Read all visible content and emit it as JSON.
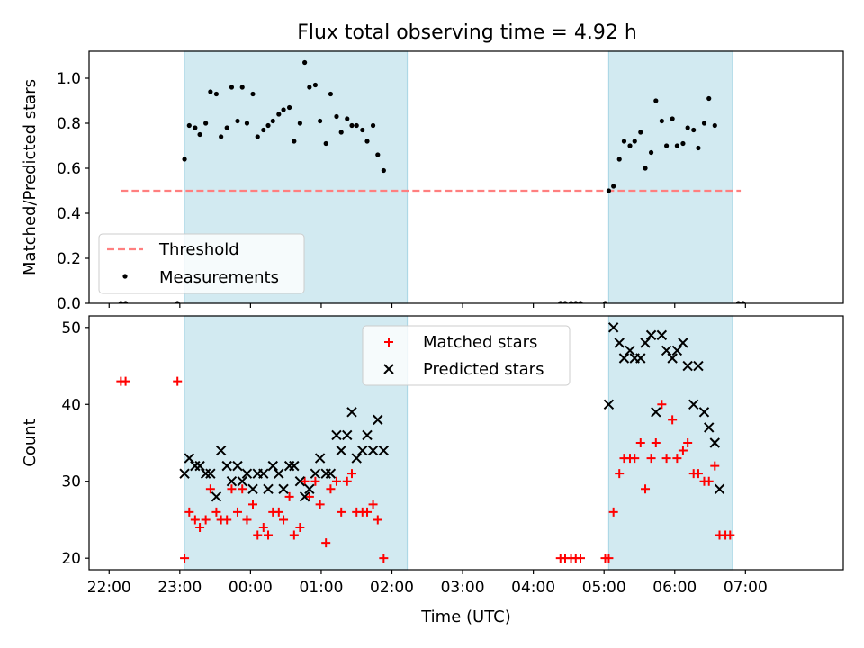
{
  "title": "Flux total observing time = 4.92 h",
  "colors": {
    "shade": "#add8e6",
    "threshold": "#ff7f7f",
    "measurement": "#000000",
    "matched": "#ff0000",
    "predicted": "#000000"
  },
  "chart_data": [
    {
      "type": "scatter",
      "panel": "top",
      "title": "Flux total observing time = 4.92 h",
      "xlabel": "",
      "ylabel": "Matched/Predicted stars",
      "xlim": [
        "21:43",
        "08:23"
      ],
      "ylim": [
        0,
        1.12
      ],
      "x_ticks": [
        "22:00",
        "23:00",
        "00:00",
        "01:00",
        "02:00",
        "03:00",
        "04:00",
        "05:00",
        "06:00",
        "07:00"
      ],
      "y_ticks": [
        "0.0",
        "0.2",
        "0.4",
        "0.6",
        "0.8",
        "1.0"
      ],
      "x_tick_labels_visible": false,
      "grid": false,
      "legend": {
        "position": "lower-left",
        "entries": [
          "Threshold",
          "Measurements"
        ]
      },
      "shaded_intervals": [
        [
          "23:04",
          "02:13"
        ],
        [
          "05:04",
          "06:49"
        ]
      ],
      "series": [
        {
          "name": "Threshold",
          "style": "dashed-line",
          "x": [
            "22:10",
            "06:56"
          ],
          "y": [
            0.5,
            0.5
          ]
        },
        {
          "name": "Measurements",
          "style": "dot",
          "points": [
            [
              "22:10",
              0.0
            ],
            [
              "22:14",
              0.0
            ],
            [
              "22:58",
              0.0
            ],
            [
              "23:04",
              0.64
            ],
            [
              "23:08",
              0.79
            ],
            [
              "23:13",
              0.78
            ],
            [
              "23:17",
              0.75
            ],
            [
              "23:22",
              0.8
            ],
            [
              "23:26",
              0.94
            ],
            [
              "23:31",
              0.93
            ],
            [
              "23:35",
              0.74
            ],
            [
              "23:40",
              0.78
            ],
            [
              "23:44",
              0.96
            ],
            [
              "23:49",
              0.81
            ],
            [
              "23:53",
              0.96
            ],
            [
              "23:57",
              0.8
            ],
            [
              "00:02",
              0.93
            ],
            [
              "00:06",
              0.74
            ],
            [
              "00:11",
              0.77
            ],
            [
              "00:15",
              0.79
            ],
            [
              "00:19",
              0.81
            ],
            [
              "00:24",
              0.84
            ],
            [
              "00:28",
              0.86
            ],
            [
              "00:33",
              0.87
            ],
            [
              "00:37",
              0.72
            ],
            [
              "00:42",
              0.8
            ],
            [
              "00:46",
              1.07
            ],
            [
              "00:50",
              0.96
            ],
            [
              "00:55",
              0.97
            ],
            [
              "00:59",
              0.81
            ],
            [
              "01:04",
              0.71
            ],
            [
              "01:08",
              0.93
            ],
            [
              "01:13",
              0.83
            ],
            [
              "01:17",
              0.76
            ],
            [
              "01:22",
              0.82
            ],
            [
              "01:26",
              0.79
            ],
            [
              "01:30",
              0.79
            ],
            [
              "01:35",
              0.77
            ],
            [
              "01:39",
              0.72
            ],
            [
              "01:44",
              0.79
            ],
            [
              "01:48",
              0.66
            ],
            [
              "01:53",
              0.59
            ],
            [
              "04:23",
              0.0
            ],
            [
              "04:27",
              0.0
            ],
            [
              "04:32",
              0.0
            ],
            [
              "04:36",
              0.0
            ],
            [
              "04:40",
              0.0
            ],
            [
              "05:01",
              0.0
            ],
            [
              "05:04",
              0.5
            ],
            [
              "05:08",
              0.52
            ],
            [
              "05:13",
              0.64
            ],
            [
              "05:17",
              0.72
            ],
            [
              "05:22",
              0.7
            ],
            [
              "05:26",
              0.72
            ],
            [
              "05:31",
              0.76
            ],
            [
              "05:35",
              0.6
            ],
            [
              "05:40",
              0.67
            ],
            [
              "05:44",
              0.9
            ],
            [
              "05:49",
              0.81
            ],
            [
              "05:53",
              0.7
            ],
            [
              "05:58",
              0.82
            ],
            [
              "06:02",
              0.7
            ],
            [
              "06:07",
              0.71
            ],
            [
              "06:11",
              0.78
            ],
            [
              "06:16",
              0.77
            ],
            [
              "06:20",
              0.69
            ],
            [
              "06:25",
              0.8
            ],
            [
              "06:29",
              0.91
            ],
            [
              "06:34",
              0.79
            ],
            [
              "06:54",
              0.0
            ],
            [
              "06:58",
              0.0
            ]
          ]
        }
      ]
    },
    {
      "type": "scatter",
      "panel": "bottom",
      "xlabel": "Time (UTC)",
      "ylabel": "Count",
      "xlim": [
        "21:43",
        "08:23"
      ],
      "ylim": [
        18.5,
        51.5
      ],
      "x_ticks": [
        "22:00",
        "23:00",
        "00:00",
        "01:00",
        "02:00",
        "03:00",
        "04:00",
        "05:00",
        "06:00",
        "07:00"
      ],
      "y_ticks": [
        "20",
        "30",
        "40",
        "50"
      ],
      "grid": false,
      "legend": {
        "position": "top-center",
        "entries": [
          "Matched stars",
          "Predicted stars"
        ]
      },
      "shaded_intervals": [
        [
          "23:04",
          "02:13"
        ],
        [
          "05:04",
          "06:49"
        ]
      ],
      "series": [
        {
          "name": "Matched stars",
          "marker": "+",
          "points": [
            [
              "22:10",
              43
            ],
            [
              "22:14",
              43
            ],
            [
              "22:58",
              43
            ],
            [
              "23:04",
              20
            ],
            [
              "23:08",
              26
            ],
            [
              "23:13",
              25
            ],
            [
              "23:17",
              24
            ],
            [
              "23:22",
              25
            ],
            [
              "23:26",
              29
            ],
            [
              "23:31",
              26
            ],
            [
              "23:35",
              25
            ],
            [
              "23:40",
              25
            ],
            [
              "23:44",
              29
            ],
            [
              "23:49",
              26
            ],
            [
              "23:53",
              29
            ],
            [
              "23:57",
              25
            ],
            [
              "00:02",
              27
            ],
            [
              "00:06",
              23
            ],
            [
              "00:11",
              24
            ],
            [
              "00:15",
              23
            ],
            [
              "00:19",
              26
            ],
            [
              "00:24",
              26
            ],
            [
              "00:28",
              25
            ],
            [
              "00:33",
              28
            ],
            [
              "00:37",
              23
            ],
            [
              "00:42",
              24
            ],
            [
              "00:46",
              30
            ],
            [
              "00:50",
              28
            ],
            [
              "00:55",
              30
            ],
            [
              "00:59",
              27
            ],
            [
              "01:04",
              22
            ],
            [
              "01:08",
              29
            ],
            [
              "01:13",
              30
            ],
            [
              "01:17",
              26
            ],
            [
              "01:22",
              30
            ],
            [
              "01:26",
              31
            ],
            [
              "01:30",
              26
            ],
            [
              "01:35",
              26
            ],
            [
              "01:39",
              26
            ],
            [
              "01:44",
              27
            ],
            [
              "01:48",
              25
            ],
            [
              "01:53",
              20
            ],
            [
              "04:23",
              20
            ],
            [
              "04:27",
              20
            ],
            [
              "04:32",
              20
            ],
            [
              "04:36",
              20
            ],
            [
              "04:40",
              20
            ],
            [
              "05:01",
              20
            ],
            [
              "05:04",
              20
            ],
            [
              "05:08",
              26
            ],
            [
              "05:13",
              31
            ],
            [
              "05:17",
              33
            ],
            [
              "05:22",
              33
            ],
            [
              "05:26",
              33
            ],
            [
              "05:31",
              35
            ],
            [
              "05:35",
              29
            ],
            [
              "05:40",
              33
            ],
            [
              "05:44",
              35
            ],
            [
              "05:49",
              40
            ],
            [
              "05:53",
              33
            ],
            [
              "05:58",
              38
            ],
            [
              "06:02",
              33
            ],
            [
              "06:07",
              34
            ],
            [
              "06:11",
              35
            ],
            [
              "06:16",
              31
            ],
            [
              "06:20",
              31
            ],
            [
              "06:25",
              30
            ],
            [
              "06:29",
              30
            ],
            [
              "06:34",
              32
            ],
            [
              "06:38",
              23
            ],
            [
              "06:43",
              23
            ],
            [
              "06:47",
              23
            ]
          ]
        },
        {
          "name": "Predicted stars",
          "marker": "x",
          "points": [
            [
              "23:04",
              31
            ],
            [
              "23:08",
              33
            ],
            [
              "23:13",
              32
            ],
            [
              "23:17",
              32
            ],
            [
              "23:22",
              31
            ],
            [
              "23:26",
              31
            ],
            [
              "23:31",
              28
            ],
            [
              "23:35",
              34
            ],
            [
              "23:40",
              32
            ],
            [
              "23:44",
              30
            ],
            [
              "23:49",
              32
            ],
            [
              "23:53",
              30
            ],
            [
              "23:57",
              31
            ],
            [
              "00:02",
              29
            ],
            [
              "00:06",
              31
            ],
            [
              "00:11",
              31
            ],
            [
              "00:15",
              29
            ],
            [
              "00:19",
              32
            ],
            [
              "00:24",
              31
            ],
            [
              "00:28",
              29
            ],
            [
              "00:33",
              32
            ],
            [
              "00:37",
              32
            ],
            [
              "00:42",
              30
            ],
            [
              "00:46",
              28
            ],
            [
              "00:50",
              29
            ],
            [
              "00:55",
              31
            ],
            [
              "00:59",
              33
            ],
            [
              "01:04",
              31
            ],
            [
              "01:08",
              31
            ],
            [
              "01:13",
              36
            ],
            [
              "01:17",
              34
            ],
            [
              "01:22",
              36
            ],
            [
              "01:26",
              39
            ],
            [
              "01:30",
              33
            ],
            [
              "01:35",
              34
            ],
            [
              "01:39",
              36
            ],
            [
              "01:44",
              34
            ],
            [
              "01:48",
              38
            ],
            [
              "01:53",
              34
            ],
            [
              "05:04",
              40
            ],
            [
              "05:08",
              50
            ],
            [
              "05:13",
              48
            ],
            [
              "05:17",
              46
            ],
            [
              "05:22",
              47
            ],
            [
              "05:26",
              46
            ],
            [
              "05:31",
              46
            ],
            [
              "05:35",
              48
            ],
            [
              "05:40",
              49
            ],
            [
              "05:44",
              39
            ],
            [
              "05:49",
              49
            ],
            [
              "05:53",
              47
            ],
            [
              "05:58",
              46
            ],
            [
              "06:02",
              47
            ],
            [
              "06:07",
              48
            ],
            [
              "06:11",
              45
            ],
            [
              "06:16",
              40
            ],
            [
              "06:20",
              45
            ],
            [
              "06:25",
              39
            ],
            [
              "06:29",
              37
            ],
            [
              "06:34",
              35
            ],
            [
              "06:38",
              29
            ]
          ]
        }
      ]
    }
  ]
}
